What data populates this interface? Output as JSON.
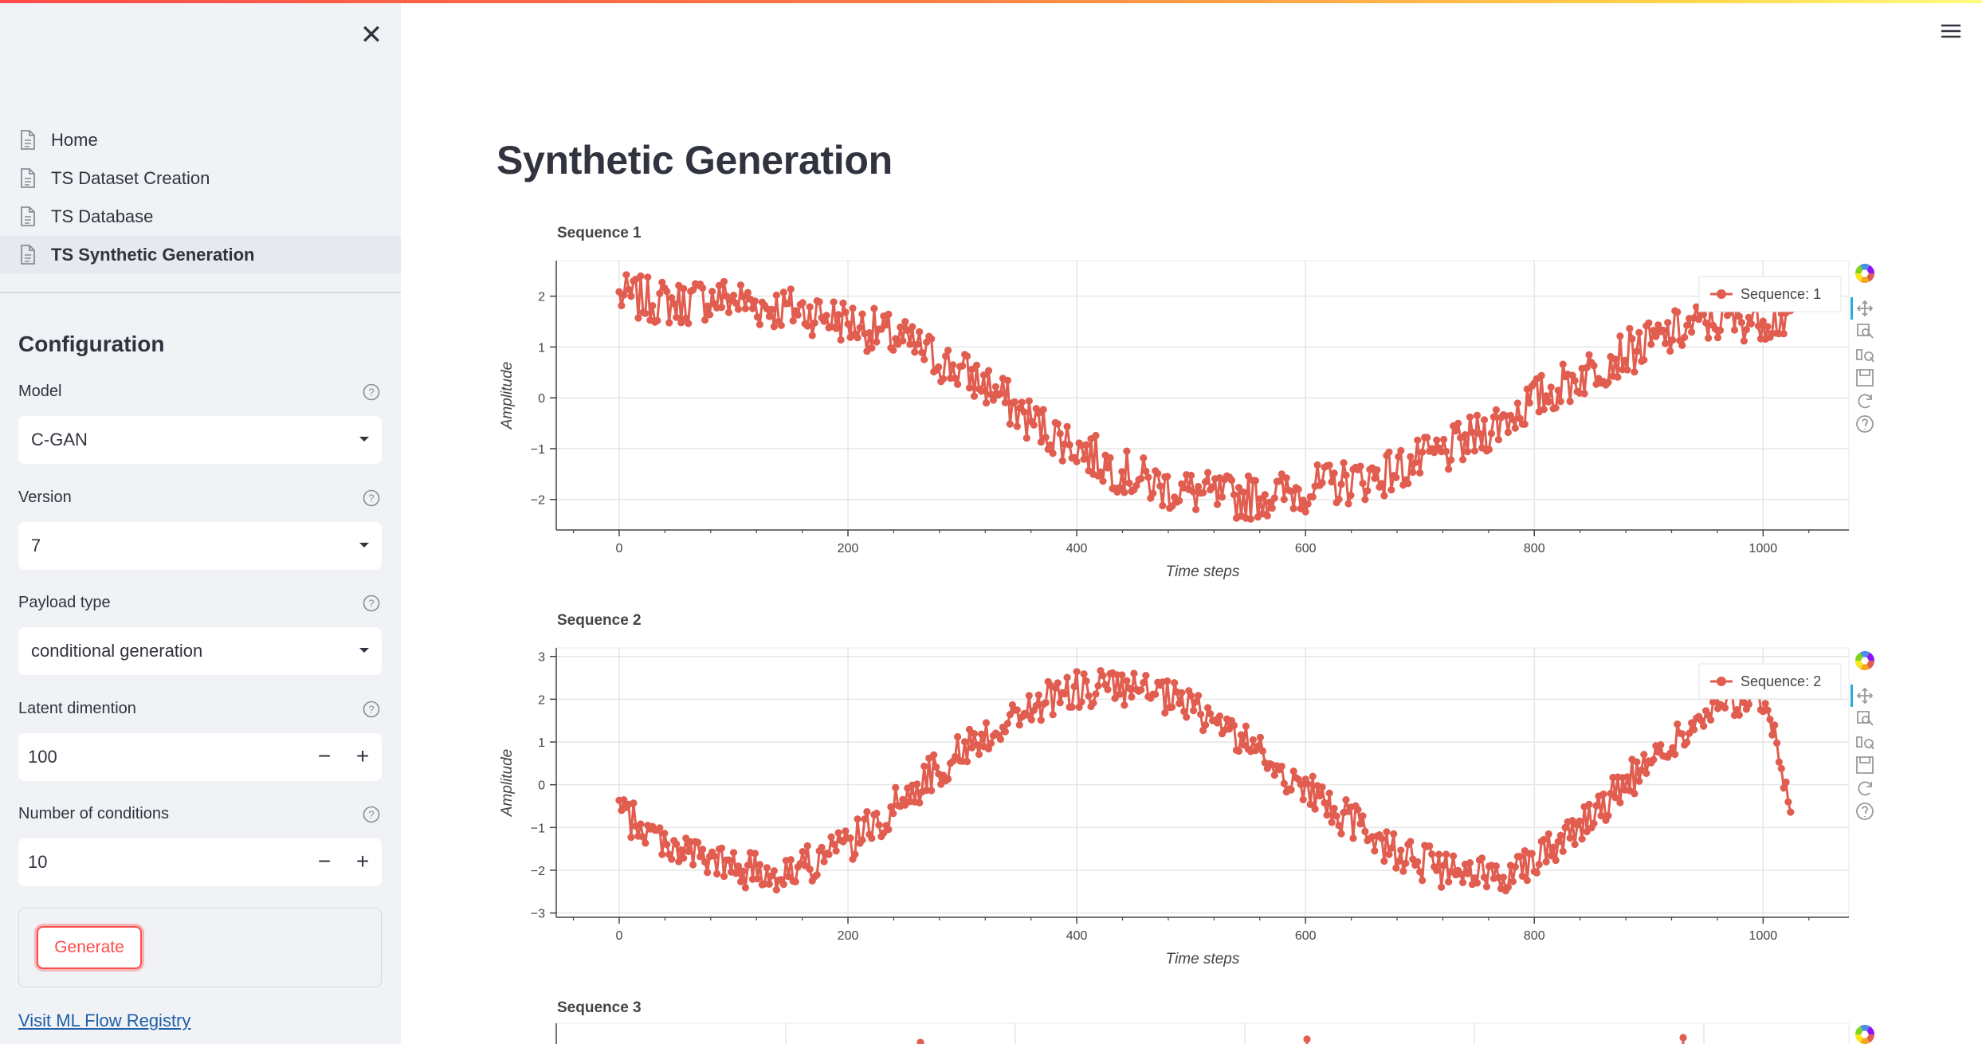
{
  "sidebar": {
    "nav": [
      {
        "label": "Home"
      },
      {
        "label": "TS Dataset Creation"
      },
      {
        "label": "TS Database"
      },
      {
        "label": "TS Synthetic Generation",
        "active": true
      }
    ],
    "config_title": "Configuration",
    "model": {
      "label": "Model",
      "value": "C-GAN"
    },
    "version": {
      "label": "Version",
      "value": "7"
    },
    "payload": {
      "label": "Payload type",
      "value": "conditional generation"
    },
    "latent": {
      "label": "Latent dimention",
      "value": "100"
    },
    "conditions": {
      "label": "Number of conditions",
      "value": "10"
    },
    "generate_label": "Generate",
    "link_text": "Visit ML Flow Registry"
  },
  "main": {
    "title": "Synthetic Generation"
  },
  "colors": {
    "series": "#e15d4f",
    "accent": "#ff4b4b",
    "sidebar_bg": "#f0f2f6"
  },
  "chart_data": [
    {
      "type": "line",
      "title": "Sequence 1",
      "xlabel": "Time steps",
      "ylabel": "Amplitude",
      "xlim": [
        -55,
        1075
      ],
      "ylim": [
        -2.6,
        2.7
      ],
      "xticks": [
        "0",
        "200",
        "400",
        "600",
        "800",
        "1000"
      ],
      "yticks": [
        "2",
        "1",
        "0",
        "−1",
        "−2"
      ],
      "legend": "Sequence: 1",
      "legend_position": "top-right",
      "grid": true,
      "series": [
        {
          "name": "Sequence: 1",
          "x": [
            0,
            25,
            50,
            75,
            100,
            125,
            150,
            175,
            200,
            225,
            250,
            275,
            300,
            325,
            350,
            375,
            400,
            425,
            450,
            475,
            500,
            525,
            550,
            575,
            600,
            625,
            650,
            675,
            700,
            725,
            750,
            775,
            800,
            825,
            850,
            875,
            900,
            925,
            950,
            975,
            1000,
            1024
          ],
          "values": [
            2.0,
            1.93,
            1.85,
            1.95,
            1.95,
            1.8,
            1.75,
            1.65,
            1.5,
            1.3,
            1.1,
            0.8,
            0.5,
            0.2,
            -0.3,
            -0.65,
            -0.95,
            -1.3,
            -1.55,
            -1.75,
            -1.85,
            -1.95,
            -1.95,
            -1.9,
            -1.8,
            -1.7,
            -1.6,
            -1.45,
            -1.25,
            -1.05,
            -0.75,
            -0.4,
            -0.05,
            0.25,
            0.55,
            0.85,
            1.05,
            1.3,
            1.5,
            1.55,
            1.6,
            1.55
          ]
        }
      ]
    },
    {
      "type": "line",
      "title": "Sequence 2",
      "xlabel": "Time steps",
      "ylabel": "Amplitude",
      "xlim": [
        -55,
        1075
      ],
      "ylim": [
        -3.1,
        3.2
      ],
      "xticks": [
        "0",
        "200",
        "400",
        "600",
        "800",
        "1000"
      ],
      "yticks": [
        "3",
        "2",
        "1",
        "0",
        "−1",
        "−2",
        "−3"
      ],
      "legend": "Sequence: 2",
      "legend_position": "top-right",
      "grid": true,
      "series": [
        {
          "name": "Sequence: 2",
          "x": [
            0,
            25,
            50,
            75,
            100,
            125,
            150,
            175,
            200,
            225,
            250,
            275,
            300,
            325,
            350,
            375,
            400,
            425,
            450,
            475,
            500,
            525,
            550,
            575,
            600,
            625,
            650,
            675,
            700,
            725,
            750,
            775,
            800,
            825,
            850,
            875,
            900,
            925,
            950,
            975,
            1000,
            1024
          ],
          "values": [
            -0.6,
            -1.1,
            -1.45,
            -1.75,
            -1.95,
            -2.05,
            -2.0,
            -1.75,
            -1.4,
            -0.9,
            -0.3,
            0.3,
            0.8,
            1.25,
            1.65,
            2.0,
            2.2,
            2.3,
            2.2,
            2.05,
            1.8,
            1.45,
            0.95,
            0.4,
            -0.1,
            -0.6,
            -1.05,
            -1.45,
            -1.8,
            -2.05,
            -2.15,
            -2.05,
            -1.7,
            -1.25,
            -0.7,
            -0.1,
            0.5,
            1.05,
            1.55,
            1.95,
            2.1,
            -0.5
          ]
        }
      ]
    }
  ],
  "partial_chart": {
    "title": "Sequence 3"
  }
}
